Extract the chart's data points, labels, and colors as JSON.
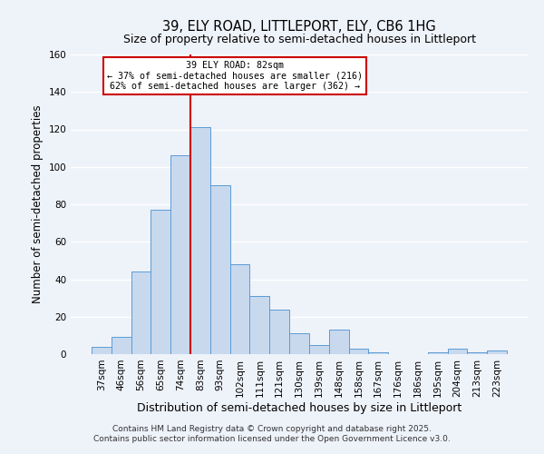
{
  "title": "39, ELY ROAD, LITTLEPORT, ELY, CB6 1HG",
  "subtitle": "Size of property relative to semi-detached houses in Littleport",
  "xlabel": "Distribution of semi-detached houses by size in Littleport",
  "ylabel": "Number of semi-detached properties",
  "bar_labels": [
    "37sqm",
    "46sqm",
    "56sqm",
    "65sqm",
    "74sqm",
    "83sqm",
    "93sqm",
    "102sqm",
    "111sqm",
    "121sqm",
    "130sqm",
    "139sqm",
    "148sqm",
    "158sqm",
    "167sqm",
    "176sqm",
    "186sqm",
    "195sqm",
    "204sqm",
    "213sqm",
    "223sqm"
  ],
  "bar_values": [
    4,
    9,
    44,
    77,
    106,
    121,
    90,
    48,
    31,
    24,
    11,
    5,
    13,
    3,
    1,
    0,
    0,
    1,
    3,
    1,
    2
  ],
  "bar_color": "#c8d9ee",
  "bar_edge_color": "#5b9bd5",
  "ylim": [
    0,
    160
  ],
  "yticks": [
    0,
    20,
    40,
    60,
    80,
    100,
    120,
    140,
    160
  ],
  "vline_color": "#cc0000",
  "vline_x_index": 5,
  "annotation_title": "39 ELY ROAD: 82sqm",
  "annotation_line2": "← 37% of semi-detached houses are smaller (216)",
  "annotation_line3": "62% of semi-detached houses are larger (362) →",
  "annotation_box_color": "#ffffff",
  "annotation_box_edge": "#cc0000",
  "footer1": "Contains HM Land Registry data © Crown copyright and database right 2025.",
  "footer2": "Contains public sector information licensed under the Open Government Licence v3.0.",
  "bg_color": "#eef2f9",
  "grid_color": "#ffffff",
  "title_fontsize": 10.5,
  "subtitle_fontsize": 9,
  "xlabel_fontsize": 9,
  "ylabel_fontsize": 8.5,
  "tick_fontsize": 7.5,
  "footer_fontsize": 6.5
}
